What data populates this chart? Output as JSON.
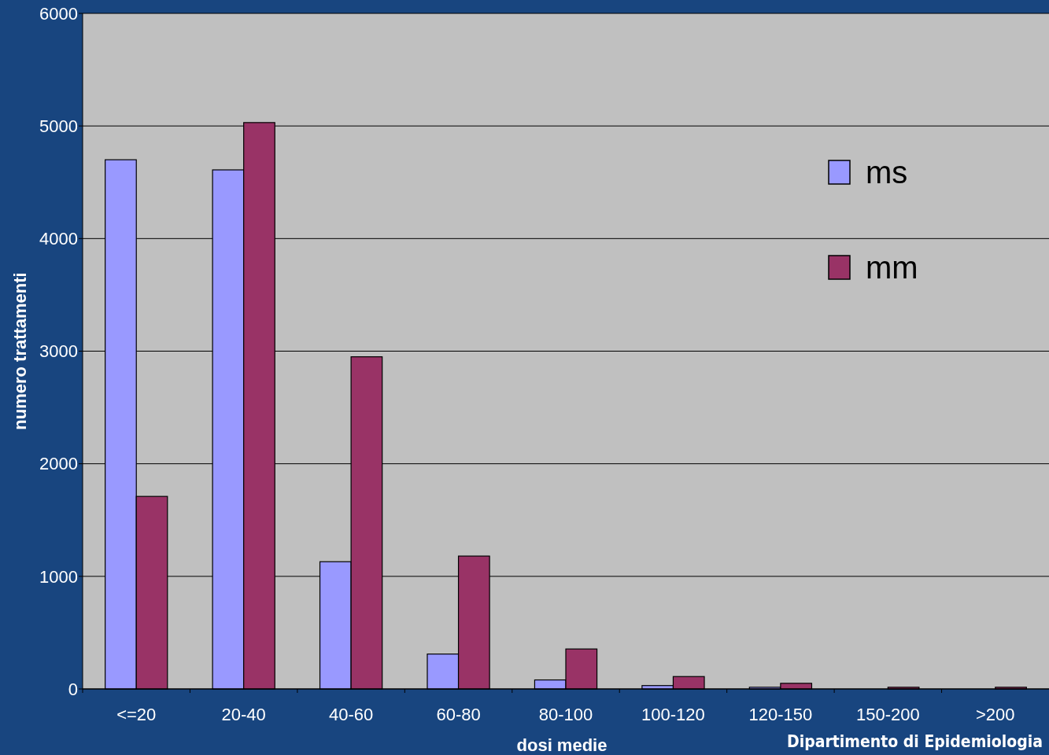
{
  "chart_data": {
    "type": "bar",
    "xlabel": "dosi medie",
    "ylabel": "numero trattamenti",
    "categories": [
      "<=20",
      "20-40",
      "40-60",
      "60-80",
      "80-100",
      "100-120",
      "120-150",
      "150-200",
      ">200"
    ],
    "series": [
      {
        "name": "ms",
        "color": "#9999ff",
        "values": [
          4700,
          4610,
          1130,
          310,
          80,
          30,
          15,
          0,
          0
        ]
      },
      {
        "name": "mm",
        "color": "#993366",
        "values": [
          1710,
          5030,
          2950,
          1180,
          355,
          110,
          50,
          15,
          15
        ]
      }
    ],
    "ylim": [
      0,
      6000
    ],
    "yticks": [
      0,
      1000,
      2000,
      3000,
      4000,
      5000,
      6000
    ],
    "grid": "y",
    "legend": "top right",
    "annotations": [
      "Dipartimento di Epidemiologia"
    ]
  }
}
